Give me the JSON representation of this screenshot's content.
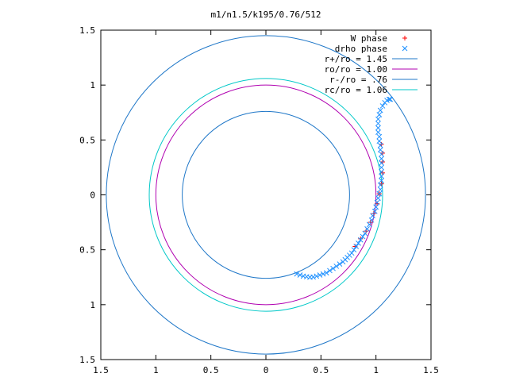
{
  "chart_data": {
    "type": "scatter",
    "title": "m1/n1.5/k195/0.76/512",
    "xlim": [
      -1.5,
      1.5
    ],
    "ylim": [
      -1.5,
      1.5
    ],
    "x_tick_labels": [
      "1.5",
      "1",
      "0.5",
      "0",
      "0.5",
      "1",
      "1.5"
    ],
    "y_tick_labels": [
      "1.5",
      "1",
      "0.5",
      "0",
      "0.5",
      "1",
      "1.5"
    ],
    "tick_values": [
      -1.5,
      -1,
      -0.5,
      0,
      0.5,
      1,
      1.5
    ],
    "grid": false,
    "legend_position": "top-right",
    "circles": [
      {
        "name": "r+/ro = 1.45",
        "radius": 1.45,
        "color": "#1f77c8"
      },
      {
        "name": "ro/ro = 1.00",
        "radius": 1.0,
        "color": "#b000b0"
      },
      {
        "name": "r-/ro = .76",
        "radius": 0.76,
        "color": "#1f77c8"
      },
      {
        "name": "rc/ro = 1.06",
        "radius": 1.06,
        "color": "#00c8c8"
      }
    ],
    "series": [
      {
        "name": "W phase",
        "marker": "+",
        "color": "#ff0000",
        "points": [
          [
            0.81,
            -0.47
          ],
          [
            0.86,
            -0.4
          ],
          [
            0.91,
            -0.33
          ],
          [
            0.95,
            -0.25
          ],
          [
            0.98,
            -0.17
          ],
          [
            1.01,
            -0.08
          ],
          [
            1.03,
            0.01
          ],
          [
            1.05,
            0.1
          ],
          [
            1.06,
            0.2
          ],
          [
            1.06,
            0.3
          ],
          [
            1.06,
            0.38
          ],
          [
            1.05,
            0.46
          ]
        ]
      },
      {
        "name": "drho phase",
        "marker": "x",
        "color": "#1e90ff",
        "points": [
          [
            0.28,
            -0.72
          ],
          [
            0.31,
            -0.73
          ],
          [
            0.34,
            -0.74
          ],
          [
            0.37,
            -0.745
          ],
          [
            0.4,
            -0.75
          ],
          [
            0.43,
            -0.748
          ],
          [
            0.46,
            -0.74
          ],
          [
            0.49,
            -0.73
          ],
          [
            0.52,
            -0.72
          ],
          [
            0.55,
            -0.71
          ],
          [
            0.58,
            -0.69
          ],
          [
            0.61,
            -0.67
          ],
          [
            0.64,
            -0.65
          ],
          [
            0.67,
            -0.63
          ],
          [
            0.7,
            -0.61
          ],
          [
            0.72,
            -0.59
          ],
          [
            0.74,
            -0.57
          ],
          [
            0.76,
            -0.55
          ],
          [
            0.78,
            -0.53
          ],
          [
            0.8,
            -0.5
          ],
          [
            0.82,
            -0.47
          ],
          [
            0.84,
            -0.44
          ],
          [
            0.86,
            -0.41
          ],
          [
            0.88,
            -0.38
          ],
          [
            0.9,
            -0.35
          ],
          [
            0.92,
            -0.31
          ],
          [
            0.94,
            -0.27
          ],
          [
            0.96,
            -0.23
          ],
          [
            0.97,
            -0.19
          ],
          [
            0.99,
            -0.15
          ],
          [
            1.0,
            -0.11
          ],
          [
            1.01,
            -0.07
          ],
          [
            1.02,
            -0.03
          ],
          [
            1.03,
            0.01
          ],
          [
            1.04,
            0.05
          ],
          [
            1.04,
            0.09
          ],
          [
            1.05,
            0.13
          ],
          [
            1.05,
            0.17
          ],
          [
            1.05,
            0.21
          ],
          [
            1.05,
            0.25
          ],
          [
            1.05,
            0.29
          ],
          [
            1.05,
            0.33
          ],
          [
            1.05,
            0.37
          ],
          [
            1.04,
            0.41
          ],
          [
            1.04,
            0.45
          ],
          [
            1.03,
            0.49
          ],
          [
            1.03,
            0.53
          ],
          [
            1.02,
            0.57
          ],
          [
            1.02,
            0.61
          ],
          [
            1.02,
            0.65
          ],
          [
            1.02,
            0.69
          ],
          [
            1.03,
            0.73
          ],
          [
            1.04,
            0.77
          ],
          [
            1.06,
            0.81
          ],
          [
            1.08,
            0.84
          ],
          [
            1.1,
            0.86
          ],
          [
            1.12,
            0.87
          ],
          [
            1.13,
            0.87
          ]
        ]
      }
    ]
  }
}
